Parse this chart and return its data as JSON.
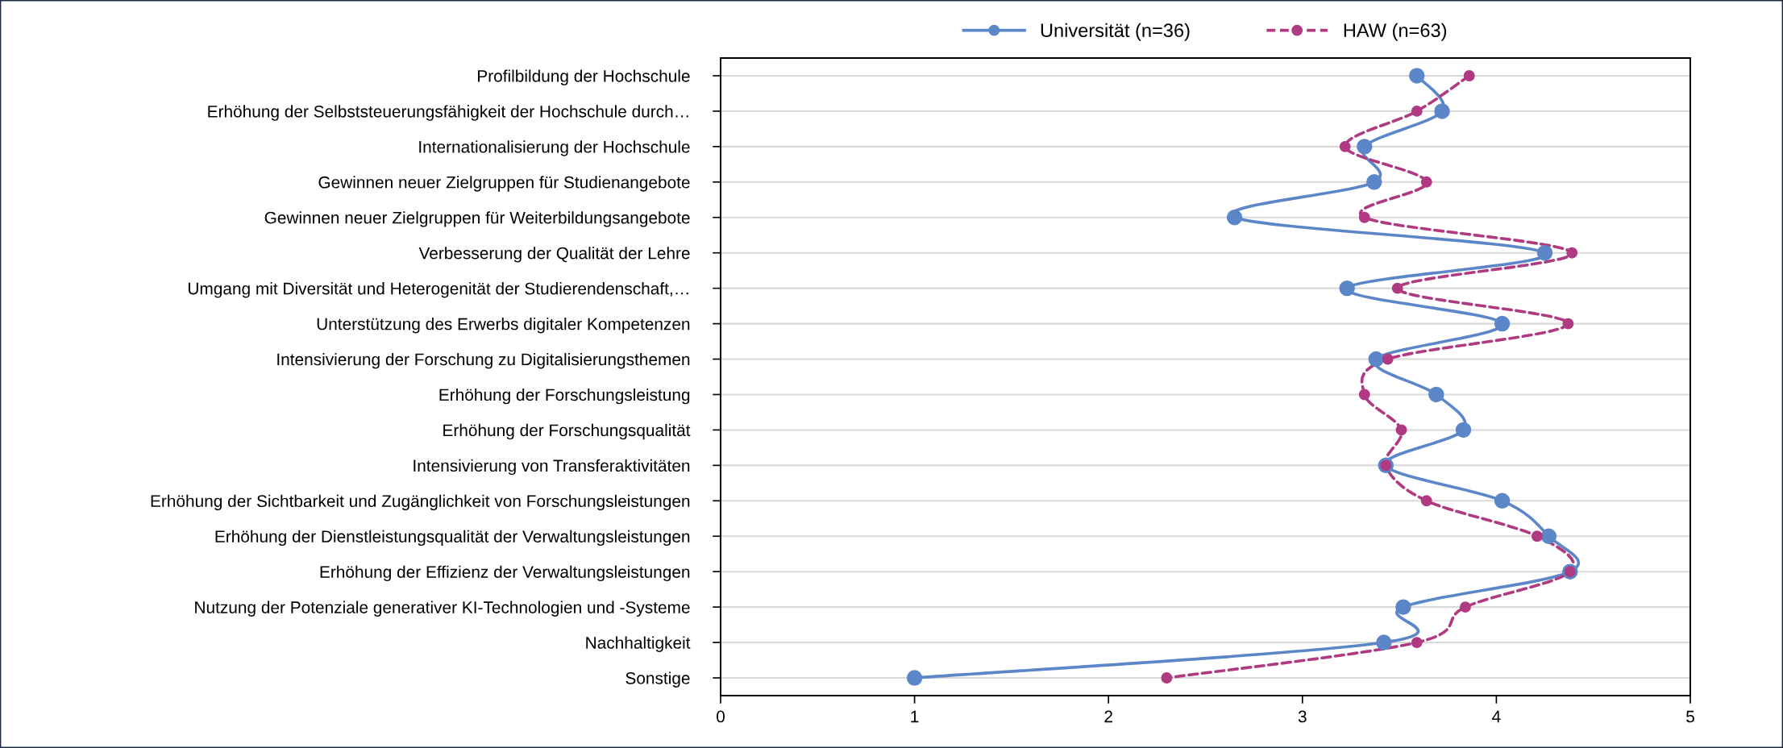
{
  "chart_data": {
    "type": "line",
    "orientation": "horizontal",
    "categories": [
      "Profilbildung der Hochschule",
      "Erhöhung der Selbststeuerungsfähigkeit der Hochschule durch…",
      "Internationalisierung der Hochschule",
      "Gewinnen neuer Zielgruppen für Studienangebote",
      "Gewinnen neuer Zielgruppen für Weiterbildungsangebote",
      "Verbesserung der Qualität der Lehre",
      "Umgang mit Diversität und Heterogenität der Studierendenschaft,…",
      "Unterstützung des Erwerbs digitaler Kompetenzen",
      "Intensivierung der Forschung zu Digitalisierungsthemen",
      "Erhöhung der Forschungsleistung",
      "Erhöhung der Forschungsqualität",
      "Intensivierung von Transferaktivitäten",
      "Erhöhung der Sichtbarkeit und Zugänglichkeit von Forschungsleistungen",
      "Erhöhung der Dienstleistungsqualität der Verwaltungsleistungen",
      "Erhöhung der Effizienz der Verwaltungsleistungen",
      "Nutzung der Potenziale generativer KI-Technologien und -Systeme",
      "Nachhaltigkeit",
      "Sonstige"
    ],
    "series": [
      {
        "name": "Universität (n=36)",
        "color": "#5b87c9",
        "line_style": "solid",
        "values": [
          3.59,
          3.72,
          3.32,
          3.37,
          2.65,
          4.25,
          3.23,
          4.03,
          3.38,
          3.69,
          3.83,
          3.43,
          4.03,
          4.27,
          4.38,
          3.52,
          3.42,
          1.0
        ]
      },
      {
        "name": "HAW (n=63)",
        "color": "#b03a82",
        "line_style": "dashed",
        "values": [
          3.86,
          3.59,
          3.22,
          3.64,
          3.32,
          4.39,
          3.49,
          4.37,
          3.44,
          3.32,
          3.51,
          3.43,
          3.64,
          4.21,
          4.38,
          3.84,
          3.59,
          2.3
        ]
      }
    ],
    "xlim": [
      0,
      5
    ],
    "xticks": [
      0,
      1,
      2,
      3,
      4,
      5
    ],
    "grid": "y",
    "legend": "top",
    "marker": "circle"
  }
}
